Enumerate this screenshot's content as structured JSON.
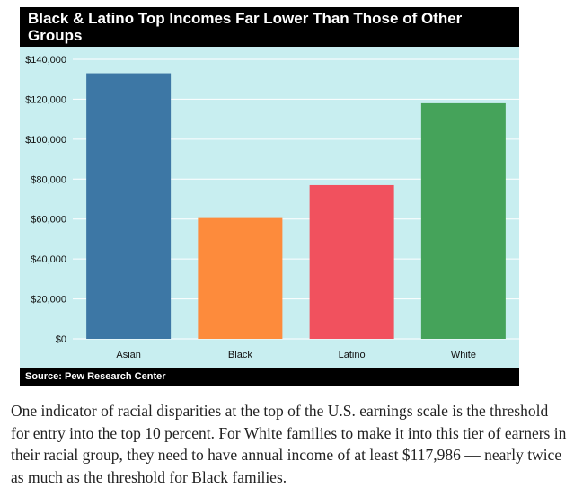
{
  "chart_data": {
    "type": "bar",
    "title": "Black & Latino Top Incomes Far Lower Than Those of Other Groups",
    "categories": [
      "Asian",
      "Black",
      "Latino",
      "White"
    ],
    "values": [
      133000,
      60500,
      77000,
      117986
    ],
    "colors": [
      "#3d77a5",
      "#fd8b3c",
      "#f1515e",
      "#45a35a"
    ],
    "ylim": [
      0,
      140000
    ],
    "yticks": [
      0,
      20000,
      40000,
      60000,
      80000,
      100000,
      120000,
      140000
    ],
    "ytick_labels": [
      "$0",
      "$20,000",
      "$40,000",
      "$60,000",
      "$80,000",
      "$100,000",
      "$120,000",
      "$140,000"
    ],
    "xlabel": "",
    "ylabel": "",
    "grid": true,
    "source": "Source: Pew Research Center",
    "background": "#c8eef0"
  },
  "caption": "One indicator of racial disparities at the top of the U.S. earnings scale is the threshold for entry into the top 10 percent. For White families to make it into this tier of earners in their racial group, they need to have annual income of at least $117,986 — nearly twice as much as the threshold for Black families."
}
